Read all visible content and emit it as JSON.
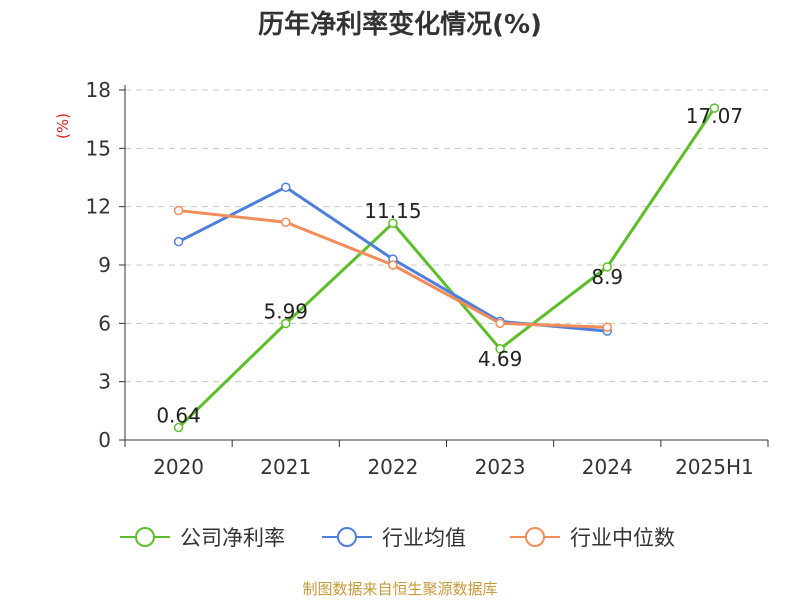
{
  "title": "历年净利率变化情况(%)",
  "source": "制图数据来自恒生聚源数据库",
  "chart_data": {
    "type": "line",
    "ylabel": "(%)",
    "ylim": [
      0,
      18
    ],
    "yticks": [
      0,
      3,
      6,
      9,
      12,
      15,
      18
    ],
    "grid": "horizontal dashed",
    "legend": "bottom",
    "categories": [
      "2020",
      "2021",
      "2022",
      "2023",
      "2024",
      "2025H1"
    ],
    "series": [
      {
        "name": "公司净利率",
        "color": "#5cbf2a",
        "values": [
          0.64,
          5.99,
          11.15,
          4.69,
          8.9,
          17.07
        ],
        "labels": [
          "0.64",
          "5.99",
          "11.15",
          "4.69",
          "8.9",
          "17.07"
        ]
      },
      {
        "name": "行业均值",
        "color": "#4f7fdc",
        "values": [
          10.2,
          13.0,
          9.3,
          6.1,
          5.6,
          null
        ]
      },
      {
        "name": "行业中位数",
        "color": "#f28c5a",
        "values": [
          11.8,
          11.2,
          9.0,
          6.0,
          5.8,
          null
        ]
      }
    ]
  }
}
